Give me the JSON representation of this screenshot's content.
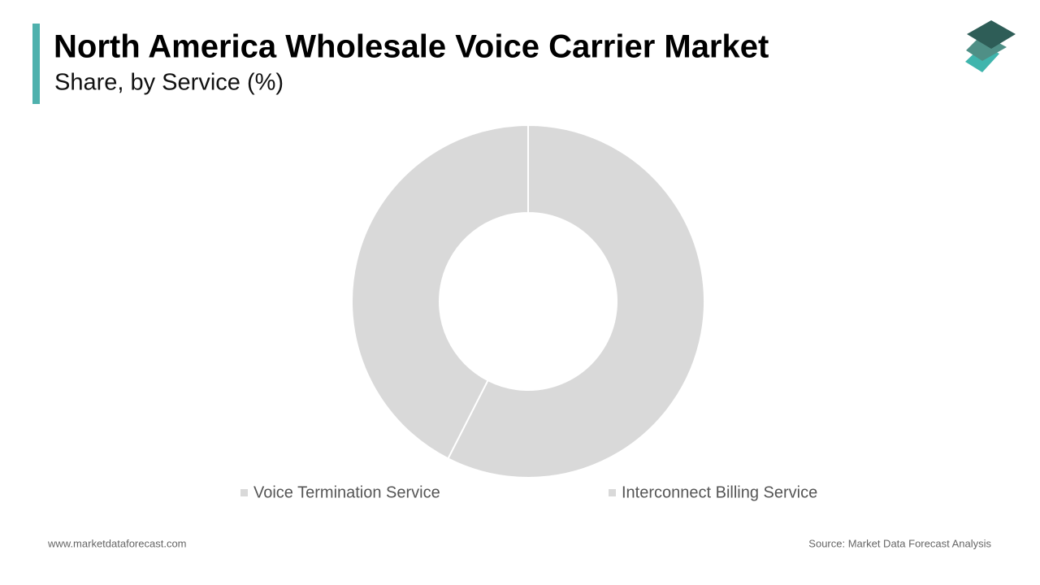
{
  "chart_data": {
    "type": "pie",
    "title": "North America Wholesale Voice Carrier Market",
    "subtitle": "Share, by Service (%)",
    "categories": [
      "Voice Termination Service",
      "Interconnect Billing Service"
    ],
    "values": [
      57.5,
      42.5
    ],
    "colors": [
      "#d9d9d9",
      "#d9d9d9"
    ],
    "donut": true
  },
  "footer": {
    "website": "www.marketdataforecast.com",
    "source": "Source: Market Data Forecast Analysis"
  }
}
